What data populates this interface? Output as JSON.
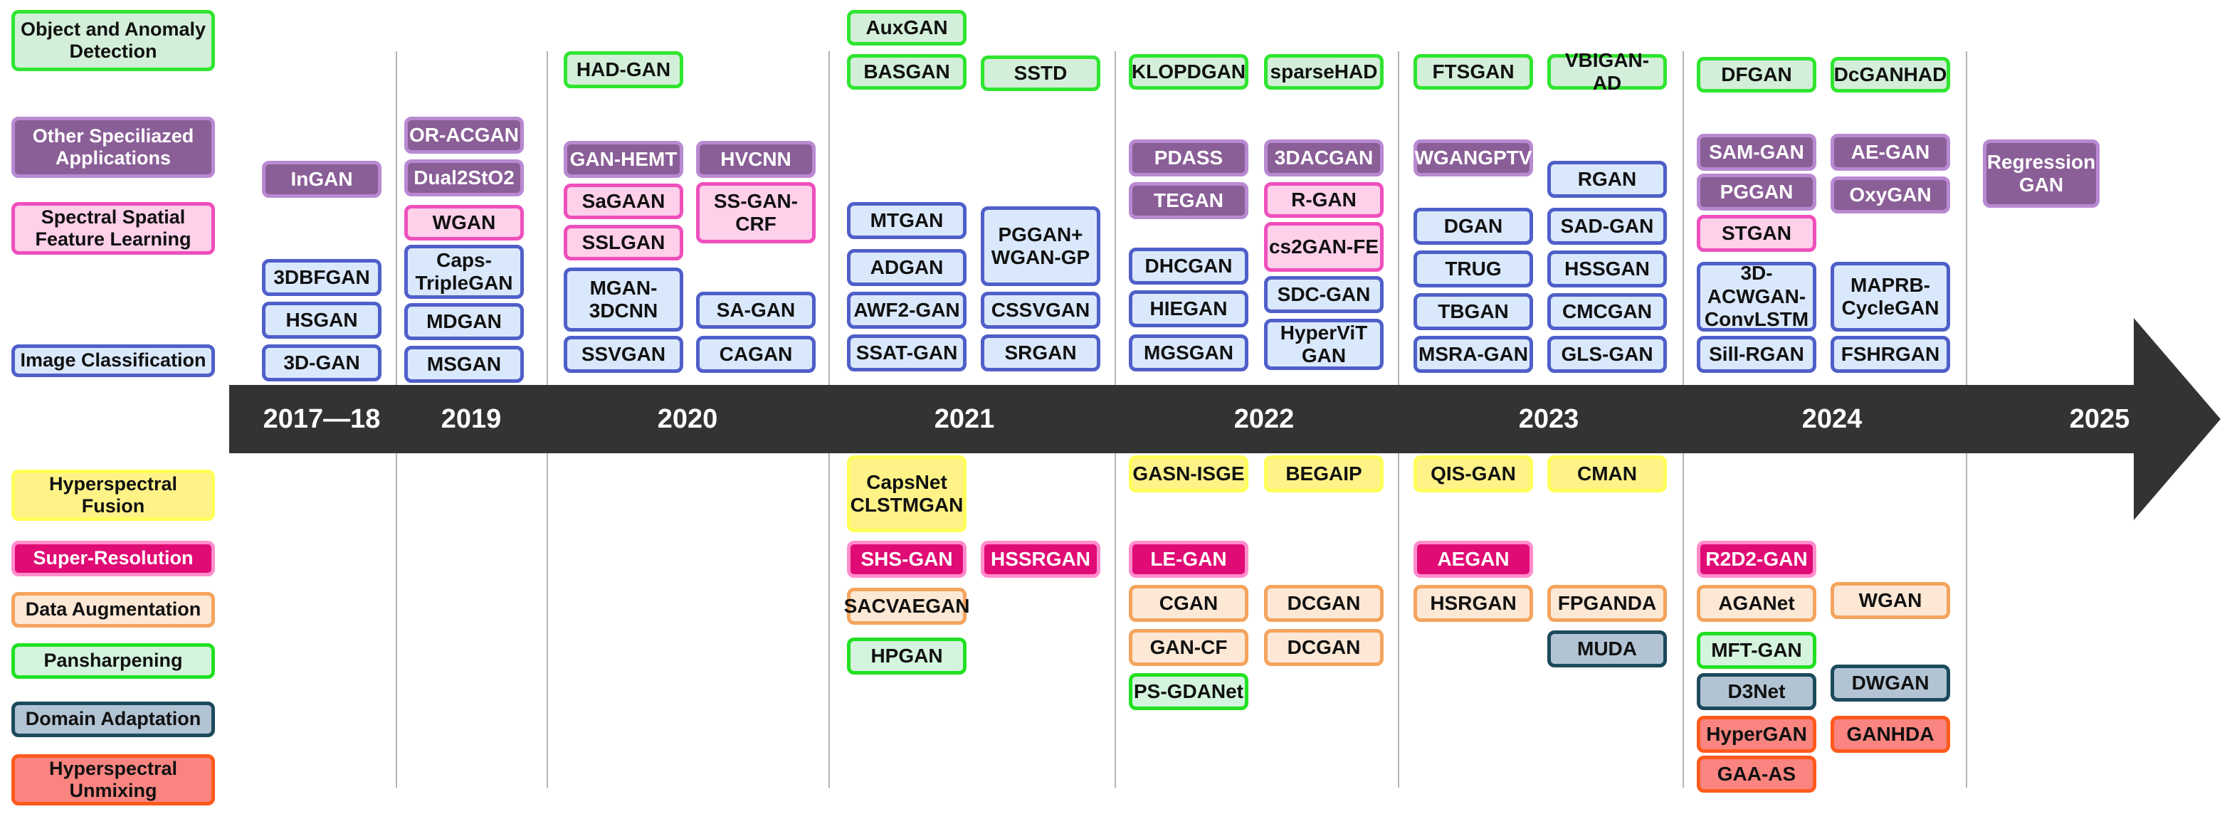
{
  "colors": {
    "timeline": "#333333",
    "cls": "#4f5fc9",
    "spa": "#ee4fbd",
    "oth": "#8a5e97",
    "obj": "#30e530",
    "fus": "#ffff5a",
    "sup": "#e00b74",
    "aug": "#f4a45e",
    "pan": "#22e022",
    "dom": "#1c4a5c",
    "unm": "#ff5a1c"
  },
  "legend": [
    {
      "id": "obj",
      "label": "Object and Anomaly Detection"
    },
    {
      "id": "oth",
      "label": "Other Speciliazed Applications"
    },
    {
      "id": "spa",
      "label": "Spectral Spatial Feature Learning"
    },
    {
      "id": "cls",
      "label": "Image Classification"
    },
    {
      "id": "fus",
      "label": "Hyperspectral Fusion"
    },
    {
      "id": "sup",
      "label": "Super-Resolution"
    },
    {
      "id": "aug",
      "label": "Data Augmentation"
    },
    {
      "id": "pan",
      "label": "Pansharpening"
    },
    {
      "id": "dom",
      "label": "Domain Adaptation"
    },
    {
      "id": "unm",
      "label": "Hyperspectral Unmixing"
    }
  ],
  "years": [
    "2017—18",
    "2019",
    "2020",
    "2021",
    "2022",
    "2023",
    "2024",
    "2025"
  ],
  "models": [
    {
      "label": "InGAN",
      "cat": "oth"
    },
    {
      "label": "3DBFGAN",
      "cat": "cls"
    },
    {
      "label": "HSGAN",
      "cat": "cls"
    },
    {
      "label": "3D-GAN",
      "cat": "cls"
    },
    {
      "label": "OR-ACGAN",
      "cat": "oth"
    },
    {
      "label": "Dual2StO2",
      "cat": "oth"
    },
    {
      "label": "WGAN",
      "cat": "spa"
    },
    {
      "label": "Caps-\nTripleGAN",
      "cat": "cls"
    },
    {
      "label": "MDGAN",
      "cat": "cls"
    },
    {
      "label": "MSGAN",
      "cat": "cls"
    },
    {
      "label": "HAD-GAN",
      "cat": "obj"
    },
    {
      "label": "GAN-HEMT",
      "cat": "oth"
    },
    {
      "label": "HVCNN",
      "cat": "oth"
    },
    {
      "label": "SaGAAN",
      "cat": "spa"
    },
    {
      "label": "SS-GAN-\nCRF",
      "cat": "spa"
    },
    {
      "label": "SSLGAN",
      "cat": "spa"
    },
    {
      "label": "MGAN-\n3DCNN",
      "cat": "cls"
    },
    {
      "label": "SA-GAN",
      "cat": "cls"
    },
    {
      "label": "SSVGAN",
      "cat": "cls"
    },
    {
      "label": "CAGAN",
      "cat": "cls"
    },
    {
      "label": "AuxGAN",
      "cat": "obj"
    },
    {
      "label": "BASGAN",
      "cat": "obj"
    },
    {
      "label": "SSTD",
      "cat": "obj"
    },
    {
      "label": "MTGAN",
      "cat": "cls"
    },
    {
      "label": "PGGAN+\nWGAN-GP",
      "cat": "cls"
    },
    {
      "label": "ADGAN",
      "cat": "cls"
    },
    {
      "label": "AWF2-GAN",
      "cat": "cls"
    },
    {
      "label": "CSSVGAN",
      "cat": "cls"
    },
    {
      "label": "SSAT-GAN",
      "cat": "cls"
    },
    {
      "label": "SRGAN",
      "cat": "cls"
    },
    {
      "label": "CapsNet\nCLSTMGAN",
      "cat": "fus"
    },
    {
      "label": "SHS-GAN",
      "cat": "sup"
    },
    {
      "label": "HSSRGAN",
      "cat": "sup"
    },
    {
      "label": "SACVAEGAN",
      "cat": "aug"
    },
    {
      "label": "HPGAN",
      "cat": "pan"
    },
    {
      "label": "KLOPDGAN",
      "cat": "obj"
    },
    {
      "label": "sparseHAD",
      "cat": "obj"
    },
    {
      "label": "PDASS",
      "cat": "oth"
    },
    {
      "label": "3DACGAN",
      "cat": "oth"
    },
    {
      "label": "TEGAN",
      "cat": "oth"
    },
    {
      "label": "R-GAN",
      "cat": "spa"
    },
    {
      "label": "cs2GAN-FE",
      "cat": "spa"
    },
    {
      "label": "DHCGAN",
      "cat": "cls"
    },
    {
      "label": "SDC-GAN",
      "cat": "cls"
    },
    {
      "label": "HIEGAN",
      "cat": "cls"
    },
    {
      "label": "HyperViT\nGAN",
      "cat": "cls"
    },
    {
      "label": "MGSGAN",
      "cat": "cls"
    },
    {
      "label": "GASN-ISGE",
      "cat": "fus"
    },
    {
      "label": "BEGAIP",
      "cat": "fus"
    },
    {
      "label": "LE-GAN",
      "cat": "sup"
    },
    {
      "label": "CGAN",
      "cat": "aug"
    },
    {
      "label": "DCGAN",
      "cat": "aug"
    },
    {
      "label": "GAN-CF",
      "cat": "aug"
    },
    {
      "label": "DCGAN",
      "cat": "aug"
    },
    {
      "label": "PS-GDANet",
      "cat": "pan"
    },
    {
      "label": "FTSGAN",
      "cat": "obj"
    },
    {
      "label": "VBIGAN-AD",
      "cat": "obj"
    },
    {
      "label": "WGANGPTV",
      "cat": "oth"
    },
    {
      "label": "RGAN",
      "cat": "cls"
    },
    {
      "label": "DGAN",
      "cat": "cls"
    },
    {
      "label": "SAD-GAN",
      "cat": "cls"
    },
    {
      "label": "TRUG",
      "cat": "cls"
    },
    {
      "label": "HSSGAN",
      "cat": "cls"
    },
    {
      "label": "TBGAN",
      "cat": "cls"
    },
    {
      "label": "CMCGAN",
      "cat": "cls"
    },
    {
      "label": "MSRA-GAN",
      "cat": "cls"
    },
    {
      "label": "GLS-GAN",
      "cat": "cls"
    },
    {
      "label": "QIS-GAN",
      "cat": "fus"
    },
    {
      "label": "CMAN",
      "cat": "fus"
    },
    {
      "label": "AEGAN",
      "cat": "sup"
    },
    {
      "label": "HSRGAN",
      "cat": "aug"
    },
    {
      "label": "FPGANDA",
      "cat": "aug"
    },
    {
      "label": "MUDA",
      "cat": "dom"
    },
    {
      "label": "DFGAN",
      "cat": "obj"
    },
    {
      "label": "DcGANHAD",
      "cat": "obj"
    },
    {
      "label": "SAM-GAN",
      "cat": "oth"
    },
    {
      "label": "AE-GAN",
      "cat": "oth"
    },
    {
      "label": "PGGAN",
      "cat": "oth"
    },
    {
      "label": "OxyGAN",
      "cat": "oth"
    },
    {
      "label": "STGAN",
      "cat": "spa"
    },
    {
      "label": "3D-\nACWGAN-\nConvLSTM",
      "cat": "cls"
    },
    {
      "label": "MAPRB-\nCycleGAN",
      "cat": "cls"
    },
    {
      "label": "Sill-RGAN",
      "cat": "cls"
    },
    {
      "label": "FSHRGAN",
      "cat": "cls"
    },
    {
      "label": "R2D2-GAN",
      "cat": "sup"
    },
    {
      "label": "AGANet",
      "cat": "aug"
    },
    {
      "label": "WGAN",
      "cat": "aug"
    },
    {
      "label": "MFT-GAN",
      "cat": "pan"
    },
    {
      "label": "D3Net",
      "cat": "dom"
    },
    {
      "label": "DWGAN",
      "cat": "dom"
    },
    {
      "label": "HyperGAN",
      "cat": "unm"
    },
    {
      "label": "GANHDA",
      "cat": "unm"
    },
    {
      "label": "GAA-AS",
      "cat": "unm"
    },
    {
      "label": "Regression\nGAN",
      "cat": "oth"
    }
  ]
}
